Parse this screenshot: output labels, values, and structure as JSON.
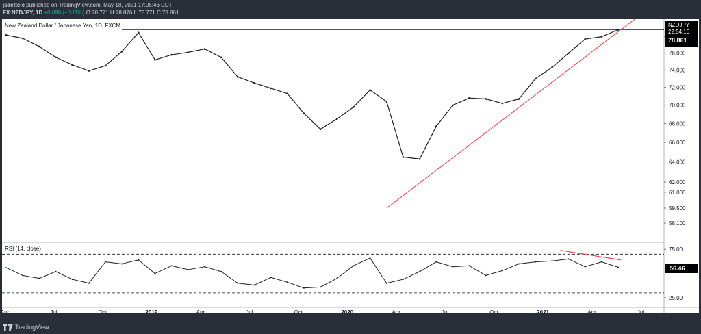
{
  "header": {
    "line1_user": "jsaettele",
    "line1_rest": " published on TradingView.com, May 18, 2021 17:05:46 CDT",
    "line2_symbol": "FX:NZDJPY, 1D",
    "line2_open": "O:78.771",
    "line2_change": "+0.090 (+0.11%)",
    "line2_high": "H:78.876",
    "line2_low": "L:78.771",
    "line2_close": "C:78.861"
  },
  "chart_title": "New Zealand Dollar / Japanese Yen, 1D, FXCM",
  "rsi_label": "RSI (14, close)",
  "price_badge": {
    "label": "NZDJPY",
    "countdown": "22:54:16",
    "price": "78.861"
  },
  "rsi_badge": "56.46",
  "footer_brand": "TradingView",
  "colors": {
    "background": "#2a2e39",
    "price_line": "#1f1f1f",
    "trendline": "#f23645",
    "up_text": "#26a69a"
  },
  "chart_data": [
    {
      "type": "line",
      "title": "New Zealand Dollar / Japanese Yen, 1D, FXCM",
      "y_scale": "log",
      "y_ticks": [
        "78.000",
        "76.000",
        "74.000",
        "72.000",
        "70.000",
        "68.000",
        "66.000",
        "64.000",
        "62.000",
        "61.000",
        "59.500",
        "58.100"
      ],
      "x_ticks": [
        "Apr",
        "Jul",
        "Oct",
        "2019",
        "Apr",
        "Jul",
        "Oct",
        "2020",
        "Apr",
        "Jul",
        "Oct",
        "2021",
        "Apr",
        "Jul"
      ],
      "x": [
        "2018-04",
        "2018-05",
        "2018-06",
        "2018-07",
        "2018-08",
        "2018-09",
        "2018-10",
        "2018-11",
        "2018-12",
        "2019-01",
        "2019-02",
        "2019-03",
        "2019-04",
        "2019-05",
        "2019-06",
        "2019-07",
        "2019-08",
        "2019-09",
        "2019-10",
        "2019-11",
        "2019-12",
        "2020-01",
        "2020-02",
        "2020-03",
        "2020-04",
        "2020-05",
        "2020-06",
        "2020-07",
        "2020-08",
        "2020-09",
        "2020-10",
        "2020-11",
        "2020-12",
        "2021-01",
        "2021-02",
        "2021-03",
        "2021-04",
        "2021-05"
      ],
      "series": [
        {
          "values": [
            78.2,
            77.8,
            76.8,
            75.5,
            74.6,
            73.9,
            74.5,
            76.2,
            78.5,
            75.2,
            75.8,
            76.1,
            76.5,
            75.5,
            73.2,
            72.5,
            71.9,
            71.3,
            69.1,
            67.4,
            68.5,
            69.8,
            71.7,
            70.4,
            64.5,
            64.3,
            67.7,
            70.0,
            70.8,
            70.7,
            70.2,
            70.7,
            73.0,
            74.3,
            76.0,
            77.7,
            78.0,
            78.86
          ]
        }
      ],
      "annotations": {
        "horizontal_line": {
          "y": 78.861,
          "from": "2018-11"
        },
        "trendline": {
          "from": [
            "2020-03",
            59.5
          ],
          "to": [
            "2021-05",
            78.6
          ]
        }
      }
    },
    {
      "type": "line",
      "title": "RSI (14, close)",
      "ylim": [
        20,
        78
      ],
      "y_ticks": [
        "75.00",
        "25.00"
      ],
      "reference_lines": [
        70,
        30
      ],
      "x": [
        "2018-04",
        "2018-05",
        "2018-06",
        "2018-07",
        "2018-08",
        "2018-09",
        "2018-10",
        "2018-11",
        "2018-12",
        "2019-01",
        "2019-02",
        "2019-03",
        "2019-04",
        "2019-05",
        "2019-06",
        "2019-07",
        "2019-08",
        "2019-09",
        "2019-10",
        "2019-11",
        "2019-12",
        "2020-01",
        "2020-02",
        "2020-03",
        "2020-04",
        "2020-05",
        "2020-06",
        "2020-07",
        "2020-08",
        "2020-09",
        "2020-10",
        "2020-11",
        "2020-12",
        "2021-01",
        "2021-02",
        "2021-03",
        "2021-04",
        "2021-05"
      ],
      "series": [
        {
          "values": [
            56,
            48,
            45,
            52,
            44,
            40,
            62,
            60,
            64,
            50,
            58,
            54,
            57,
            52,
            40,
            38,
            46,
            41,
            35,
            36,
            45,
            58,
            66,
            40,
            44,
            52,
            62,
            57,
            58,
            48,
            53,
            60,
            62,
            63,
            65,
            57,
            62,
            56.46
          ]
        }
      ],
      "annotations": {
        "trendline": {
          "from": [
            "2021-02",
            74
          ],
          "to": [
            "2021-05",
            64
          ]
        }
      }
    }
  ]
}
